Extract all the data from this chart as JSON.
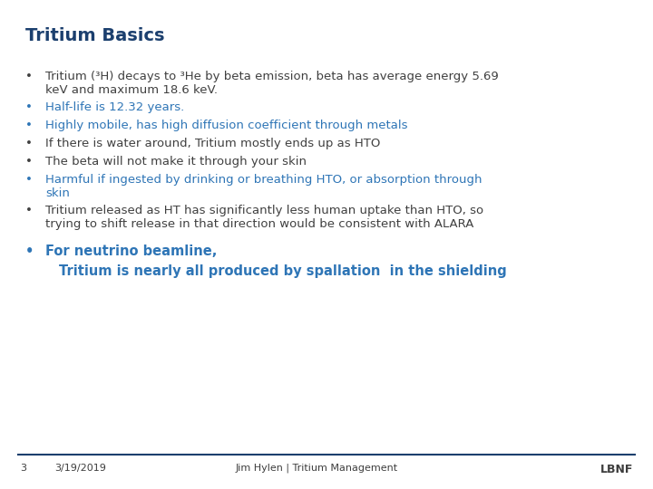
{
  "title": "Tritium Basics",
  "title_color": "#1B3F6E",
  "title_fontsize": 14,
  "background_color": "#FFFFFF",
  "bullets": [
    {
      "text": "Tritium (³H) decays to ³He by beta emission, beta has average energy 5.69\nkeV and maximum 18.6 keV.",
      "color": "#404040",
      "bold": false,
      "size": 9.5
    },
    {
      "text": "Half-life is 12.32 years.",
      "color": "#2E75B6",
      "bold": false,
      "size": 9.5
    },
    {
      "text": "Highly mobile, has high diffusion coefficient through metals",
      "color": "#2E75B6",
      "bold": false,
      "size": 9.5
    },
    {
      "text": "If there is water around, Tritium mostly ends up as HTO",
      "color": "#404040",
      "bold": false,
      "size": 9.5
    },
    {
      "text": "The beta will not make it through your skin",
      "color": "#404040",
      "bold": false,
      "size": 9.5
    },
    {
      "text": "Harmful if ingested by drinking or breathing HTO, or absorption through\nskin",
      "color": "#2E75B6",
      "bold": false,
      "size": 9.5
    },
    {
      "text": "Tritium released as HT has significantly less human uptake than HTO, so\ntrying to shift release in that direction would be consistent with ALARA",
      "color": "#404040",
      "bold": false,
      "size": 9.5
    }
  ],
  "extra_bullet_line1": "For neutrino beamline,",
  "extra_bullet_line2": "Tritium is nearly all produced by spallation  in the shielding",
  "extra_color": "#2E75B6",
  "footer_left_num": "3",
  "footer_date": "3/19/2019",
  "footer_center": "Jim Hylen | Tritium Management",
  "footer_right": "LBNF",
  "footer_color": "#3D3D3D",
  "footer_line_color": "#1B3F6E",
  "font_family": "DejaVu Sans"
}
